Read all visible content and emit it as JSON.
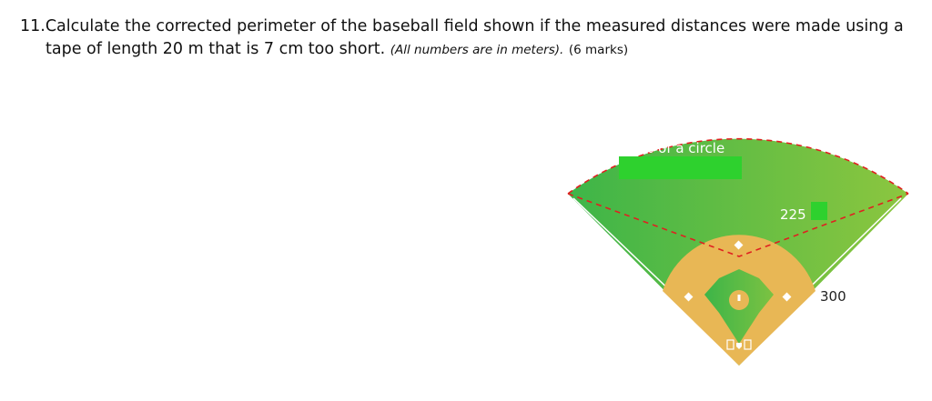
{
  "question": {
    "line1": "11.Calculate the corrected perimeter of the baseball field shown if the measured distances were made using a",
    "line2": "tape of length 20 m that is 7 cm too short.",
    "note": "(All numbers are in meters).",
    "marks": "(6 marks)"
  },
  "diagram": {
    "arc_label": "40% of a circle",
    "label_225": "225",
    "label_300": "300",
    "colors": {
      "field_green_dark": "#3db548",
      "field_green_light": "#8cc63f",
      "infield_tan": "#e8b755",
      "dashed_red": "#e02020",
      "label_box_green": "#2ed12e"
    }
  }
}
